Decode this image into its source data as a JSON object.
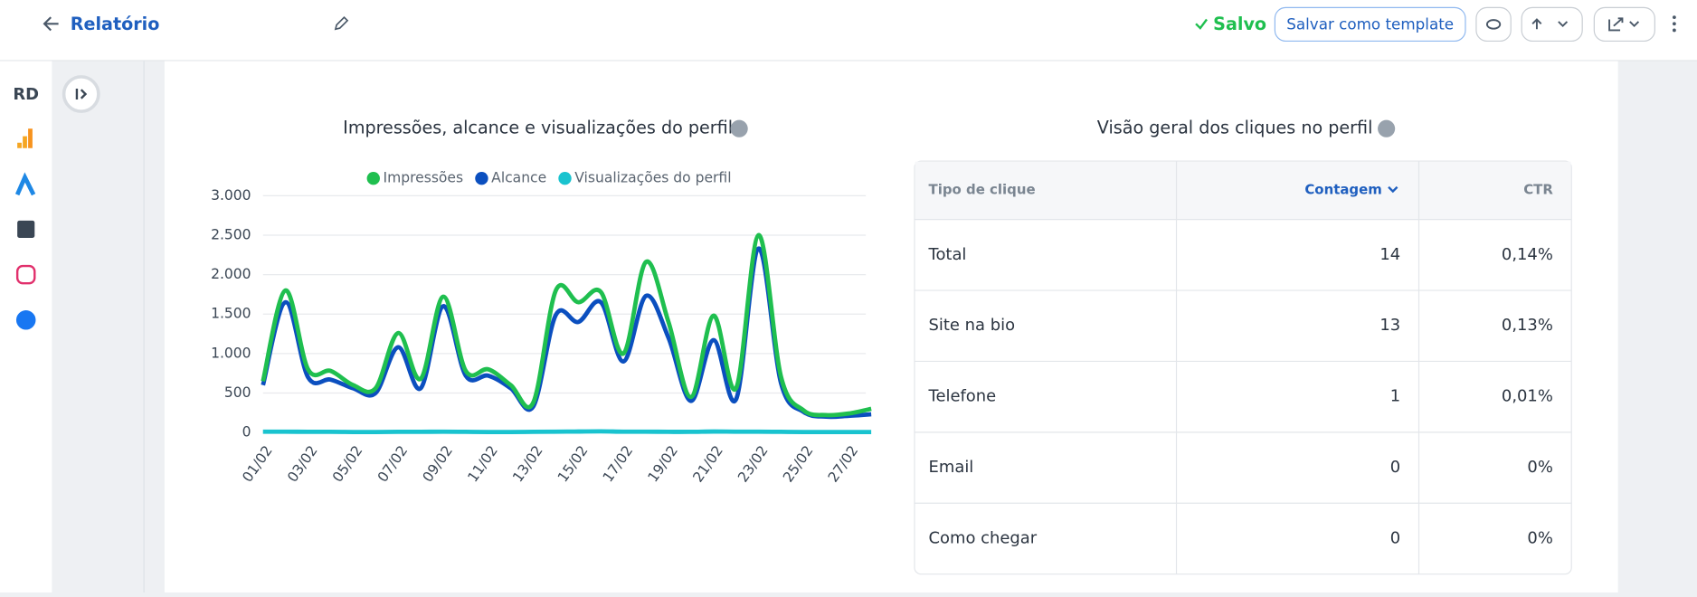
{
  "header": {
    "title": "Relatório",
    "status": "Salvo",
    "template_button": "Salvar como template"
  },
  "sidebar": {
    "logo": "RD"
  },
  "chart_data": {
    "type": "line",
    "title": "Impressões, alcance e visualizações do perfil",
    "categories": [
      "01/02",
      null,
      "03/02",
      null,
      "05/02",
      null,
      "07/02",
      null,
      "09/02",
      null,
      "11/02",
      null,
      "13/02",
      null,
      "15/02",
      null,
      "17/02",
      null,
      "19/02",
      null,
      "21/02",
      null,
      "23/02",
      null,
      "25/02",
      null,
      "27/02",
      null
    ],
    "series": [
      {
        "name": "Impressões",
        "color": "#1fbf4f",
        "values": [
          650,
          1800,
          800,
          780,
          600,
          560,
          1260,
          680,
          1720,
          780,
          800,
          600,
          380,
          1800,
          1650,
          1780,
          1000,
          2160,
          1400,
          450,
          1480,
          560,
          2500,
          700,
          280,
          220,
          240,
          300
        ]
      },
      {
        "name": "Alcance",
        "color": "#0b4fbf",
        "values": [
          600,
          1650,
          700,
          670,
          560,
          500,
          1080,
          560,
          1600,
          720,
          720,
          560,
          330,
          1490,
          1400,
          1650,
          900,
          1730,
          1200,
          400,
          1170,
          420,
          2330,
          620,
          260,
          200,
          210,
          230
        ]
      },
      {
        "name": "Visualizações do perfil",
        "color": "#19c3cf",
        "values": [
          10,
          10,
          8,
          8,
          6,
          6,
          8,
          8,
          10,
          8,
          6,
          6,
          8,
          10,
          12,
          14,
          10,
          10,
          8,
          8,
          12,
          10,
          10,
          8,
          6,
          6,
          6,
          6
        ]
      }
    ],
    "ylim": [
      0,
      3000
    ],
    "yticks": [
      0,
      500,
      {
        "value": 1000,
        "label": "1.000"
      },
      {
        "value": 1500,
        "label": "1.500"
      },
      {
        "value": 2000,
        "label": "2.000"
      },
      {
        "value": 2500,
        "label": "2.500"
      },
      {
        "value": 3000,
        "label": "3.000"
      }
    ],
    "grid": true,
    "legend": "top"
  },
  "table": {
    "title": "Visão geral dos cliques no perfil",
    "columns": [
      "Tipo de clique",
      "Contagem",
      "CTR"
    ],
    "rows": [
      [
        "Total",
        "14",
        "0,14%"
      ],
      [
        "Site na bio",
        "13",
        "0,13%"
      ],
      [
        "Telefone",
        "1",
        "0,01%"
      ],
      [
        "Email",
        "0",
        "0%"
      ],
      [
        "Como chegar",
        "0",
        "0%"
      ]
    ]
  }
}
